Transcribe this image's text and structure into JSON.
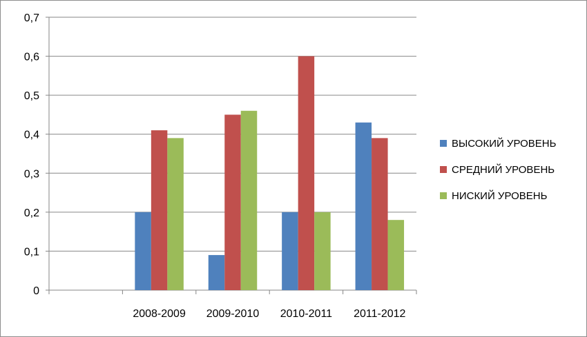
{
  "chart_data": {
    "type": "bar",
    "categories": [
      "",
      "2008-2009",
      "2009-2010",
      "2010-2011",
      "2011-2012"
    ],
    "series": [
      {
        "name": "ВЫСОКИЙ УРОВЕНЬ",
        "color": "#4F81BD",
        "values": [
          null,
          0.2,
          0.09,
          0.2,
          0.43
        ]
      },
      {
        "name": "СРЕДНИЙ УРОВЕНЬ",
        "color": "#C0504D",
        "values": [
          null,
          0.41,
          0.45,
          0.6,
          0.39
        ]
      },
      {
        "name": "НИСКИЙ УРОВЕНЬ",
        "color": "#9BBB59",
        "values": [
          null,
          0.39,
          0.46,
          0.2,
          0.18
        ]
      }
    ],
    "yticks": [
      "0",
      "0,1",
      "0,2",
      "0,3",
      "0,4",
      "0,5",
      "0,6",
      "0,7"
    ],
    "ylim": [
      0,
      0.7
    ],
    "title": "",
    "xlabel": "",
    "ylabel": "",
    "grid": true,
    "legend_position": "right"
  }
}
